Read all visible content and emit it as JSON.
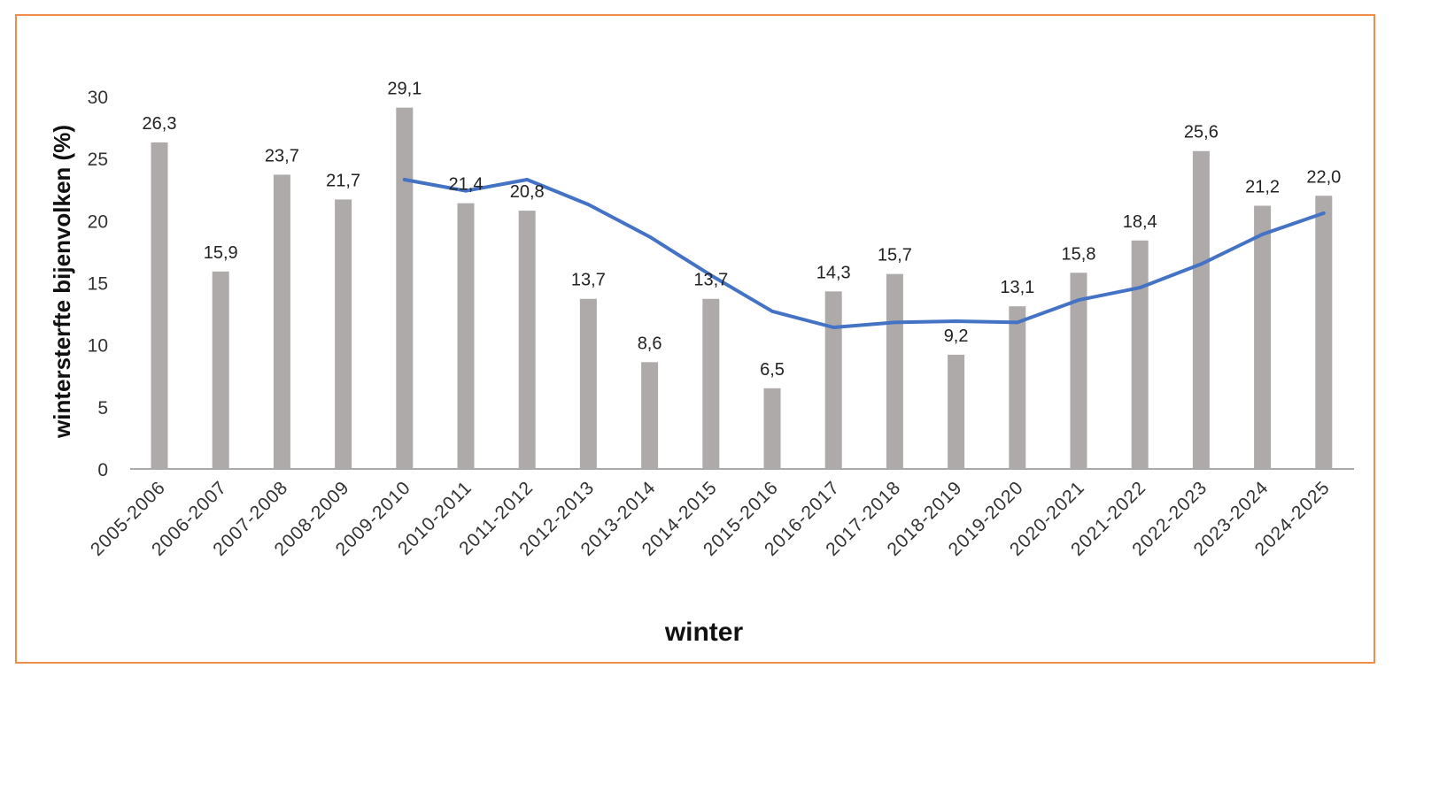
{
  "chart_data": {
    "type": "bar",
    "title": "",
    "xlabel": "winter",
    "ylabel": "wintersterfte bijenvolken (%)",
    "ylim": [
      0,
      30
    ],
    "yticks": [
      "0",
      "5",
      "10",
      "15",
      "20",
      "25",
      "30"
    ],
    "grid": false,
    "legend": "none",
    "categories": [
      "2005-2006",
      "2006-2007",
      "2007-2008",
      "2008-2009",
      "2009-2010",
      "2010-2011",
      "2011-2012",
      "2012-2013",
      "2013-2014",
      "2014-2015",
      "2015-2016",
      "2016-2017",
      "2017-2018",
      "2018-2019",
      "2019-2020",
      "2020-2021",
      "2021-2022",
      "2022-2023",
      "2023-2024",
      "2024-2025"
    ],
    "values": [
      26.3,
      15.9,
      23.7,
      21.7,
      29.1,
      21.4,
      20.8,
      13.7,
      8.6,
      13.7,
      6.5,
      14.3,
      15.7,
      9.2,
      13.1,
      15.8,
      18.4,
      25.6,
      21.2,
      22.0
    ],
    "data_labels": [
      "26,3",
      "15,9",
      "23,7",
      "21,7",
      "29,1",
      "21,4",
      "20,8",
      "13,7",
      "8,6",
      "13,7",
      "6,5",
      "14,3",
      "15,7",
      "9,2",
      "13,1",
      "15,8",
      "18,4",
      "25,6",
      "21,2",
      "22,0"
    ],
    "trend_line": {
      "start_index": 4,
      "values": [
        23.3,
        22.4,
        23.3,
        21.3,
        18.7,
        15.6,
        12.7,
        11.4,
        11.8,
        11.9,
        11.8,
        13.6,
        14.6,
        16.5,
        18.9,
        20.6
      ]
    },
    "colors": {
      "bar": "#aeaaaa",
      "trend": "#4472c4",
      "axis": "#aaaaaa",
      "frame": "#ef8c4a"
    }
  }
}
